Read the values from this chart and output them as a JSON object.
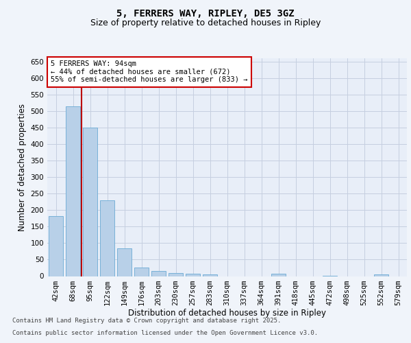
{
  "title": "5, FERRERS WAY, RIPLEY, DE5 3GZ",
  "subtitle": "Size of property relative to detached houses in Ripley",
  "xlabel": "Distribution of detached houses by size in Ripley",
  "ylabel": "Number of detached properties",
  "categories": [
    "42sqm",
    "68sqm",
    "95sqm",
    "122sqm",
    "149sqm",
    "176sqm",
    "203sqm",
    "230sqm",
    "257sqm",
    "283sqm",
    "310sqm",
    "337sqm",
    "364sqm",
    "391sqm",
    "418sqm",
    "445sqm",
    "472sqm",
    "498sqm",
    "525sqm",
    "552sqm",
    "579sqm"
  ],
  "values": [
    182,
    515,
    450,
    230,
    85,
    26,
    15,
    10,
    8,
    5,
    0,
    0,
    0,
    8,
    0,
    0,
    2,
    0,
    0,
    5,
    0
  ],
  "bar_color": "#b8d0e8",
  "bar_edgecolor": "#6aaad4",
  "vline_color": "#bb0000",
  "annotation_text": "5 FERRERS WAY: 94sqm\n← 44% of detached houses are smaller (672)\n55% of semi-detached houses are larger (833) →",
  "annotation_box_color": "#ffffff",
  "annotation_box_edgecolor": "#cc0000",
  "ylim": [
    0,
    660
  ],
  "yticks": [
    0,
    50,
    100,
    150,
    200,
    250,
    300,
    350,
    400,
    450,
    500,
    550,
    600,
    650
  ],
  "background_color": "#f0f4fa",
  "plot_bg_color": "#e8eef8",
  "grid_color": "#c5cfe0",
  "footer_line1": "Contains HM Land Registry data © Crown copyright and database right 2025.",
  "footer_line2": "Contains public sector information licensed under the Open Government Licence v3.0.",
  "title_fontsize": 10,
  "subtitle_fontsize": 9,
  "axis_label_fontsize": 8.5,
  "tick_fontsize": 7.5,
  "annotation_fontsize": 7.5,
  "footer_fontsize": 6.5
}
